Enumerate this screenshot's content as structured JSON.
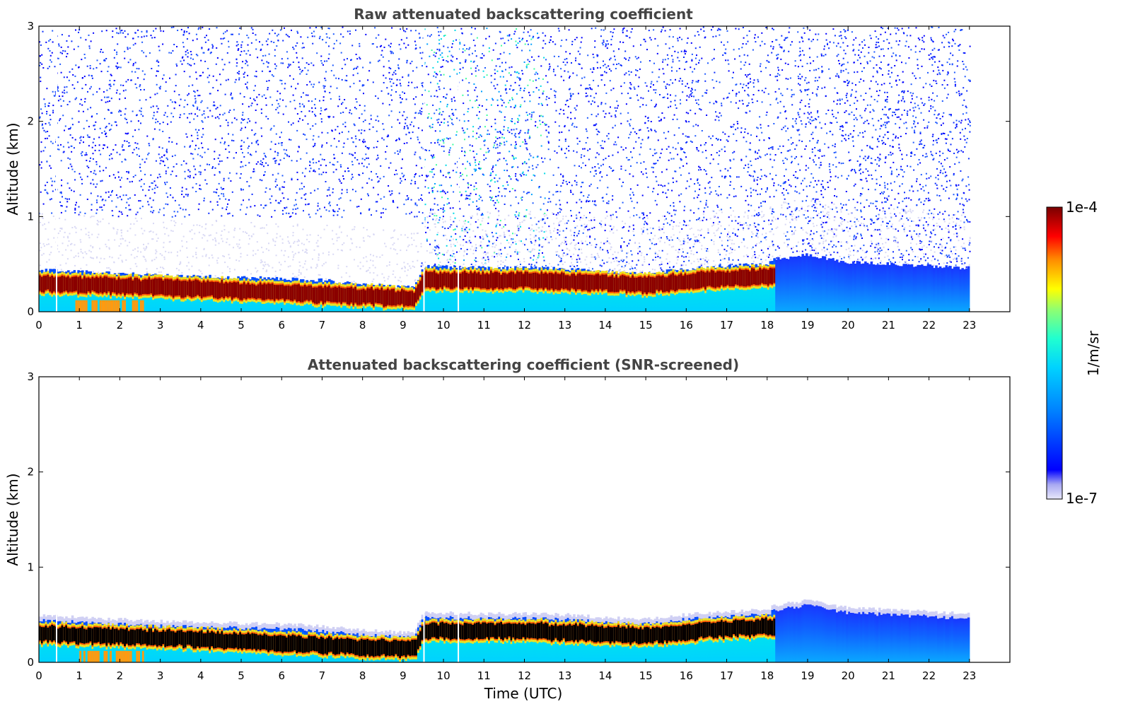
{
  "chart_data": [
    {
      "type": "heatmap",
      "title": "Raw attenuated backscattering coefficient",
      "xlabel": "",
      "ylabel": "Altitude (km)",
      "xlim": [
        0,
        24
      ],
      "ylim": [
        0,
        3
      ],
      "x_ticks": [
        "0",
        "1",
        "2",
        "3",
        "4",
        "5",
        "6",
        "7",
        "8",
        "9",
        "10",
        "11",
        "12",
        "13",
        "14",
        "15",
        "16",
        "17",
        "18",
        "19",
        "20",
        "21",
        "22",
        "23"
      ],
      "y_ticks": [
        "0",
        "1",
        "2",
        "3"
      ],
      "data_x_range": [
        0,
        23
      ],
      "boundary_layer_top_km": [
        {
          "t": 0,
          "h": 0.44
        },
        {
          "t": 1,
          "h": 0.42
        },
        {
          "t": 2,
          "h": 0.4
        },
        {
          "t": 3,
          "h": 0.38
        },
        {
          "t": 4,
          "h": 0.37
        },
        {
          "t": 5,
          "h": 0.36
        },
        {
          "t": 6,
          "h": 0.35
        },
        {
          "t": 7,
          "h": 0.33
        },
        {
          "t": 8,
          "h": 0.29
        },
        {
          "t": 9,
          "h": 0.26
        },
        {
          "t": 9.3,
          "h": 0.27
        },
        {
          "t": 9.5,
          "h": 0.48
        },
        {
          "t": 10,
          "h": 0.47
        },
        {
          "t": 11,
          "h": 0.46
        },
        {
          "t": 12,
          "h": 0.46
        },
        {
          "t": 13,
          "h": 0.45
        },
        {
          "t": 14,
          "h": 0.42
        },
        {
          "t": 15,
          "h": 0.4
        },
        {
          "t": 16,
          "h": 0.45
        },
        {
          "t": 17,
          "h": 0.48
        },
        {
          "t": 18,
          "h": 0.5
        },
        {
          "t": 18.2,
          "h": 0.55
        },
        {
          "t": 19,
          "h": 0.6
        },
        {
          "t": 20,
          "h": 0.52
        },
        {
          "t": 21,
          "h": 0.5
        },
        {
          "t": 22,
          "h": 0.48
        },
        {
          "t": 23,
          "h": 0.46
        }
      ],
      "peak_layer_center_km": [
        {
          "t": 0,
          "h": 0.3
        },
        {
          "t": 2,
          "h": 0.27
        },
        {
          "t": 4,
          "h": 0.24
        },
        {
          "t": 6,
          "h": 0.2
        },
        {
          "t": 8,
          "h": 0.16
        },
        {
          "t": 9.3,
          "h": 0.14
        },
        {
          "t": 9.5,
          "h": 0.33
        },
        {
          "t": 12,
          "h": 0.33
        },
        {
          "t": 14,
          "h": 0.3
        },
        {
          "t": 15,
          "h": 0.28
        },
        {
          "t": 16,
          "h": 0.32
        },
        {
          "t": 17,
          "h": 0.35
        },
        {
          "t": 18,
          "h": 0.37
        }
      ],
      "raw_noise": true
    },
    {
      "type": "heatmap",
      "title": "Attenuated backscattering coefficient (SNR-screened)",
      "xlabel": "Time (UTC)",
      "ylabel": "Altitude (km)",
      "xlim": [
        0,
        24
      ],
      "ylim": [
        0,
        3
      ],
      "x_ticks": [
        "0",
        "1",
        "2",
        "3",
        "4",
        "5",
        "6",
        "7",
        "8",
        "9",
        "10",
        "11",
        "12",
        "13",
        "14",
        "15",
        "16",
        "17",
        "18",
        "19",
        "20",
        "21",
        "22",
        "23"
      ],
      "y_ticks": [
        "0",
        "1",
        "2",
        "3"
      ],
      "data_x_range": [
        0,
        23
      ],
      "raw_noise": false
    }
  ],
  "colorbar": {
    "label": "1/m/sr",
    "max_label": "1e-4",
    "min_label": "1e-7",
    "colormap": [
      "#e8e8fa",
      "#bdbdf5",
      "#8080f0",
      "#0000ff",
      "#0064ff",
      "#00b4ff",
      "#00e6e6",
      "#40ffb0",
      "#a0ff60",
      "#ffff00",
      "#ffb400",
      "#ff5000",
      "#e60000",
      "#a00000",
      "#7a0000"
    ]
  }
}
